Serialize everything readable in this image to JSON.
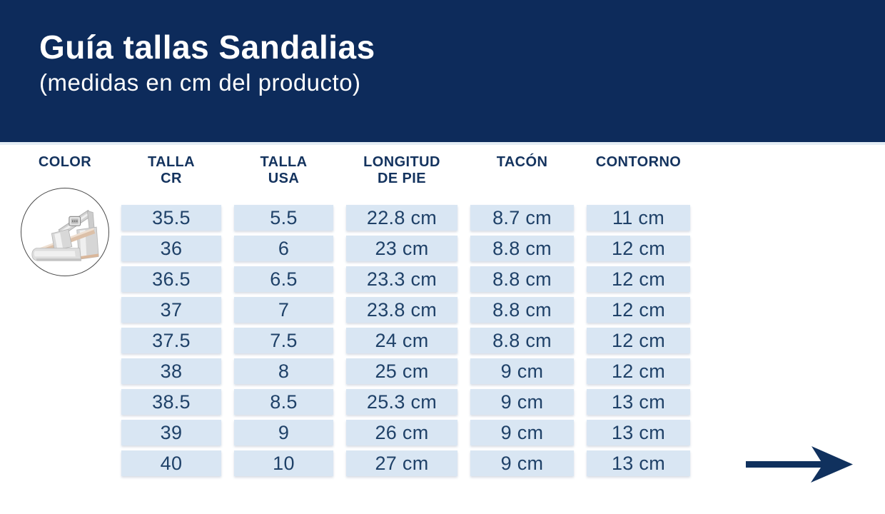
{
  "header": {
    "title": "Guía tallas Sandalias",
    "subtitle": "(medidas en cm del producto)"
  },
  "table": {
    "columns": [
      {
        "key": "color",
        "label": "COLOR"
      },
      {
        "key": "talla_cr",
        "label": "TALLA CR"
      },
      {
        "key": "talla_usa",
        "label": "TALLA USA"
      },
      {
        "key": "longitud_de_pie",
        "label": "LONGITUD DE PIE"
      },
      {
        "key": "tacon",
        "label": "TACÓN"
      },
      {
        "key": "contorno",
        "label": "CONTORNO"
      }
    ],
    "rows": [
      {
        "talla_cr": "35.5",
        "talla_usa": "5.5",
        "longitud_de_pie": "22.8 cm",
        "tacon": "8.7 cm",
        "contorno": "11 cm"
      },
      {
        "talla_cr": "36",
        "talla_usa": "6",
        "longitud_de_pie": "23 cm",
        "tacon": "8.8 cm",
        "contorno": "12 cm"
      },
      {
        "talla_cr": "36.5",
        "talla_usa": "6.5",
        "longitud_de_pie": "23.3 cm",
        "tacon": "8.8 cm",
        "contorno": "12 cm"
      },
      {
        "talla_cr": "37",
        "talla_usa": "7",
        "longitud_de_pie": "23.8 cm",
        "tacon": "8.8 cm",
        "contorno": "12 cm"
      },
      {
        "talla_cr": "37.5",
        "talla_usa": "7.5",
        "longitud_de_pie": "24 cm",
        "tacon": "8.8 cm",
        "contorno": "12 cm"
      },
      {
        "talla_cr": "38",
        "talla_usa": "8",
        "longitud_de_pie": "25 cm",
        "tacon": "9 cm",
        "contorno": "12 cm"
      },
      {
        "talla_cr": "38.5",
        "talla_usa": "8.5",
        "longitud_de_pie": "25.3 cm",
        "tacon": "9 cm",
        "contorno": "13 cm"
      },
      {
        "talla_cr": "39",
        "talla_usa": "9",
        "longitud_de_pie": "26 cm",
        "tacon": "9 cm",
        "contorno": "13 cm"
      },
      {
        "talla_cr": "40",
        "talla_usa": "10",
        "longitud_de_pie": "27 cm",
        "tacon": "9 cm",
        "contorno": "13 cm"
      }
    ]
  },
  "product": {
    "icon": "silver-platform-sandal-photo"
  },
  "colors": {
    "band_navy": "#0d2b5b",
    "header_text_navy": "#14335e",
    "cell_bg_blue": "#d9e6f3",
    "cell_text_navy": "#1f4168",
    "arrow_navy": "#10315e"
  }
}
